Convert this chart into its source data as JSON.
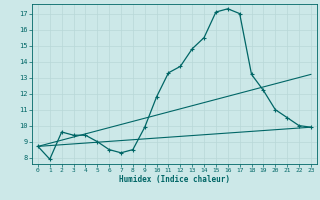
{
  "background_color": "#cce8e8",
  "grid_color": "#b8d8d8",
  "line_color": "#006666",
  "xlabel": "Humidex (Indice chaleur)",
  "xlim": [
    -0.5,
    23.5
  ],
  "ylim": [
    7.6,
    17.6
  ],
  "yticks": [
    8,
    9,
    10,
    11,
    12,
    13,
    14,
    15,
    16,
    17
  ],
  "xticks": [
    0,
    1,
    2,
    3,
    4,
    5,
    6,
    7,
    8,
    9,
    10,
    11,
    12,
    13,
    14,
    15,
    16,
    17,
    18,
    19,
    20,
    21,
    22,
    23
  ],
  "line1_x": [
    0,
    1,
    2,
    3,
    4,
    5,
    6,
    7,
    8,
    9,
    10,
    11,
    12,
    13,
    14,
    15,
    16,
    17,
    18,
    19,
    20,
    21,
    22,
    23
  ],
  "line1_y": [
    8.7,
    7.9,
    9.6,
    9.4,
    9.4,
    9.0,
    8.5,
    8.3,
    8.5,
    9.9,
    11.8,
    13.3,
    13.7,
    14.8,
    15.5,
    17.1,
    17.3,
    17.0,
    13.2,
    12.2,
    11.0,
    10.5,
    10.0,
    9.9
  ],
  "line2_x": [
    0,
    23
  ],
  "line2_y": [
    8.7,
    9.9
  ],
  "line3_x": [
    0,
    23
  ],
  "line3_y": [
    8.7,
    13.2
  ]
}
